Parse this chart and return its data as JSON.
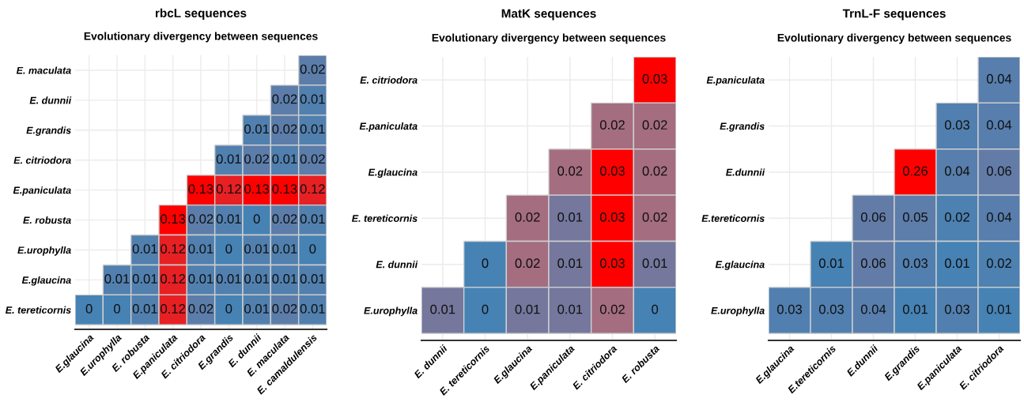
{
  "chart_data": [
    {
      "type": "heatmap",
      "title": "rbcL sequences",
      "subtitle": "Evolutionary divergency between sequences",
      "data_labels": true,
      "grid": true,
      "categories": [
        "E.glaucina",
        "E.urophylla",
        "E. robusta",
        "E.paniculata",
        "E. citriodora",
        "E.grandis",
        "E. dunnii",
        "E. maculata",
        "E. camaldulensis"
      ],
      "y_categories": [
        "E. maculata",
        "E. dunnii",
        "E.grandis",
        "E. citriodora",
        "E.paniculata",
        "E. robusta",
        "E.urophylla",
        "E.glaucina",
        "E. tereticornis"
      ],
      "cells": [
        [
          null,
          null,
          null,
          null,
          null,
          null,
          null,
          null,
          0.02
        ],
        [
          null,
          null,
          null,
          null,
          null,
          null,
          null,
          0.02,
          0.01
        ],
        [
          null,
          null,
          null,
          null,
          null,
          null,
          0.01,
          0.02,
          0.01
        ],
        [
          null,
          null,
          null,
          null,
          null,
          0.01,
          0.02,
          0.01,
          0.02
        ],
        [
          null,
          null,
          null,
          null,
          0.13,
          0.12,
          0.13,
          0.13,
          0.12
        ],
        [
          null,
          null,
          null,
          0.13,
          0.02,
          0.01,
          0,
          0.02,
          0.01
        ],
        [
          null,
          null,
          0.01,
          0.12,
          0.01,
          0,
          0.01,
          0.01,
          0
        ],
        [
          null,
          0.01,
          0.01,
          0.12,
          0.01,
          0.01,
          0.01,
          0.01,
          0.01
        ],
        [
          0,
          0,
          0.01,
          0.12,
          0.02,
          0,
          0.01,
          0.02,
          0.01
        ]
      ]
    },
    {
      "type": "heatmap",
      "title": "MatK sequences",
      "subtitle": "Evolutionary divergency between sequences",
      "data_labels": true,
      "grid": true,
      "categories": [
        "E. dunnii",
        "E. tereticornis",
        "E.glaucina",
        "E.paniculata",
        "E. citriodora",
        "E. robusta"
      ],
      "y_categories": [
        "E. citriodora",
        "E.paniculata",
        "E.glaucina",
        "E. tereticornis",
        "E. dunnii",
        "E.urophylla"
      ],
      "cells": [
        [
          null,
          null,
          null,
          null,
          null,
          0.03
        ],
        [
          null,
          null,
          null,
          null,
          0.02,
          0.02
        ],
        [
          null,
          null,
          null,
          0.02,
          0.03,
          0.02
        ],
        [
          null,
          null,
          0.02,
          0.01,
          0.03,
          0.02
        ],
        [
          null,
          0,
          0.02,
          0.01,
          0.03,
          0.01
        ],
        [
          0.01,
          0,
          0.01,
          0.01,
          0.02,
          0
        ]
      ]
    },
    {
      "type": "heatmap",
      "title": "TrnL-F sequences",
      "subtitle": "Evolutionary divergency between sequences",
      "data_labels": true,
      "grid": true,
      "categories": [
        "E.glaucina",
        "E.tereticornis",
        "E.dunnii",
        "E.grandis",
        "E.paniculata",
        "E. citriodora"
      ],
      "y_categories": [
        "E.paniculata",
        "E.grandis",
        "E.dunnii",
        "E.tereticornis",
        "E.glaucina",
        "E.urophylla"
      ],
      "cells": [
        [
          null,
          null,
          null,
          null,
          null,
          0.04
        ],
        [
          null,
          null,
          null,
          null,
          0.03,
          0.04
        ],
        [
          null,
          null,
          null,
          0.26,
          0.04,
          0.06
        ],
        [
          null,
          null,
          0.06,
          0.05,
          0.02,
          0.04
        ],
        [
          null,
          0.01,
          0.06,
          0.03,
          0.01,
          0.02
        ],
        [
          0.03,
          0.03,
          0.04,
          0.01,
          0.03,
          0.01
        ]
      ]
    }
  ]
}
